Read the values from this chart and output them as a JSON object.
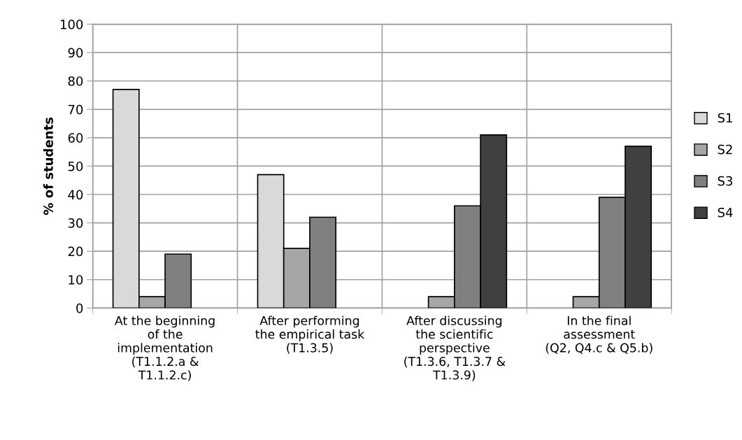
{
  "chart_data": {
    "type": "bar",
    "ylabel": "% of students",
    "categories": [
      "At the beginning\nof the\nimplementation\n(T1.1.2.a &\nT1.1.2.c)",
      "After performing\nthe empirical task\n(T1.3.5)",
      "After discussing\nthe scientific\nperspective\n(T1.3.6, T1.3.7 &\nT1.3.9)",
      "In the final\nassessment\n(Q2, Q4.c & Q5.b)"
    ],
    "series": [
      {
        "name": "S1",
        "color": "#d9d9d9",
        "values": [
          77,
          47,
          null,
          null
        ]
      },
      {
        "name": "S2",
        "color": "#a6a6a6",
        "values": [
          4,
          21,
          4,
          4
        ]
      },
      {
        "name": "S3",
        "color": "#808080",
        "values": [
          19,
          32,
          36,
          39
        ]
      },
      {
        "name": "S4",
        "color": "#404040",
        "values": [
          null,
          null,
          61,
          57
        ]
      }
    ],
    "ylim": [
      0,
      100
    ],
    "yticks": [
      0,
      10,
      20,
      30,
      40,
      50,
      60,
      70,
      80,
      90,
      100
    ],
    "grid": true,
    "legend": "right"
  }
}
